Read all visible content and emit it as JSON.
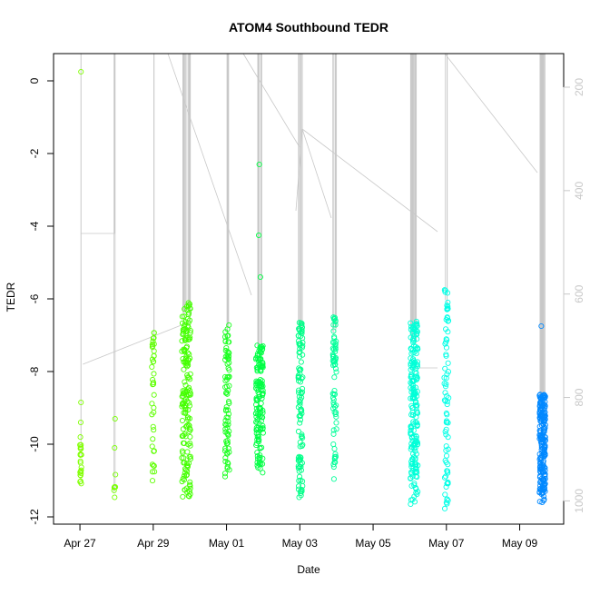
{
  "chart_data": {
    "type": "scatter",
    "title": "ATOM4 Southbound TEDR",
    "xlabel": "Date",
    "ylabel": "TEDR",
    "x_ticks": [
      "Apr 27",
      "Apr 29",
      "May 01",
      "May 03",
      "May 05",
      "May 07",
      "May 09"
    ],
    "x_tick_days": [
      0,
      2,
      4,
      6,
      8,
      10,
      12
    ],
    "y_ticks": [
      0,
      -2,
      -4,
      -6,
      -8,
      -10,
      -12
    ],
    "y_ticks_labels": [
      "0",
      "-2",
      "-4",
      "-6",
      "-8",
      "-10",
      "-12"
    ],
    "secondary_axis_ticks": [
      200,
      400,
      600,
      800,
      1000
    ],
    "secondary_axis_labels": [
      "200",
      "400",
      "600",
      "800",
      "1000"
    ],
    "xlim_days": [
      -0.72,
      13.2
    ],
    "ylim": [
      -12.2,
      0.75
    ],
    "secondary_ylim": [
      135,
      1045
    ],
    "colors": {
      "axis": "#000000",
      "secondary_axis": "#c8c8c8",
      "track_line": "#c8c8c8"
    },
    "clusters": [
      {
        "day": 0.02,
        "jitter": 0.02,
        "ymin": -11.3,
        "ymax": -9.7,
        "n": 22,
        "extras": [
          0.25,
          -8.85,
          -9.4
        ],
        "color": "#80ff00"
      },
      {
        "day": 0.95,
        "jitter": 0.02,
        "ymin": -11.5,
        "ymax": -10.8,
        "n": 6,
        "extras": [
          -9.3,
          -10.1
        ],
        "color": "#77ff00"
      },
      {
        "day": 2.0,
        "jitter": 0.04,
        "ymin": -11.3,
        "ymax": -6.9,
        "n": 38,
        "extras": [],
        "color": "#5eff00"
      },
      {
        "day": 2.9,
        "jitter": 0.12,
        "ymin": -11.5,
        "ymax": -6.1,
        "n": 170,
        "extras": [],
        "color": "#44ff00"
      },
      {
        "day": 4.02,
        "jitter": 0.06,
        "ymin": -10.9,
        "ymax": -6.6,
        "n": 80,
        "extras": [],
        "color": "#1bff20"
      },
      {
        "day": 4.9,
        "jitter": 0.1,
        "ymin": -10.8,
        "ymax": -7.2,
        "n": 140,
        "extras": [
          -2.3,
          -4.25,
          -5.4
        ],
        "color": "#00ff44"
      },
      {
        "day": 6.02,
        "jitter": 0.06,
        "ymin": -11.6,
        "ymax": -6.5,
        "n": 110,
        "extras": [],
        "color": "#00ff88"
      },
      {
        "day": 6.95,
        "jitter": 0.05,
        "ymin": -11.1,
        "ymax": -6.5,
        "n": 70,
        "extras": [],
        "color": "#00ff99"
      },
      {
        "day": 9.12,
        "jitter": 0.1,
        "ymin": -11.7,
        "ymax": -6.6,
        "n": 200,
        "extras": [],
        "color": "#00ffd8"
      },
      {
        "day": 10.0,
        "jitter": 0.06,
        "ymin": -11.8,
        "ymax": -5.7,
        "n": 75,
        "extras": [],
        "color": "#00ffe6"
      },
      {
        "day": 12.62,
        "jitter": 0.08,
        "ymin": -11.6,
        "ymax": -8.6,
        "n": 200,
        "extras": [
          -6.75
        ],
        "color": "#0088ff"
      }
    ]
  }
}
